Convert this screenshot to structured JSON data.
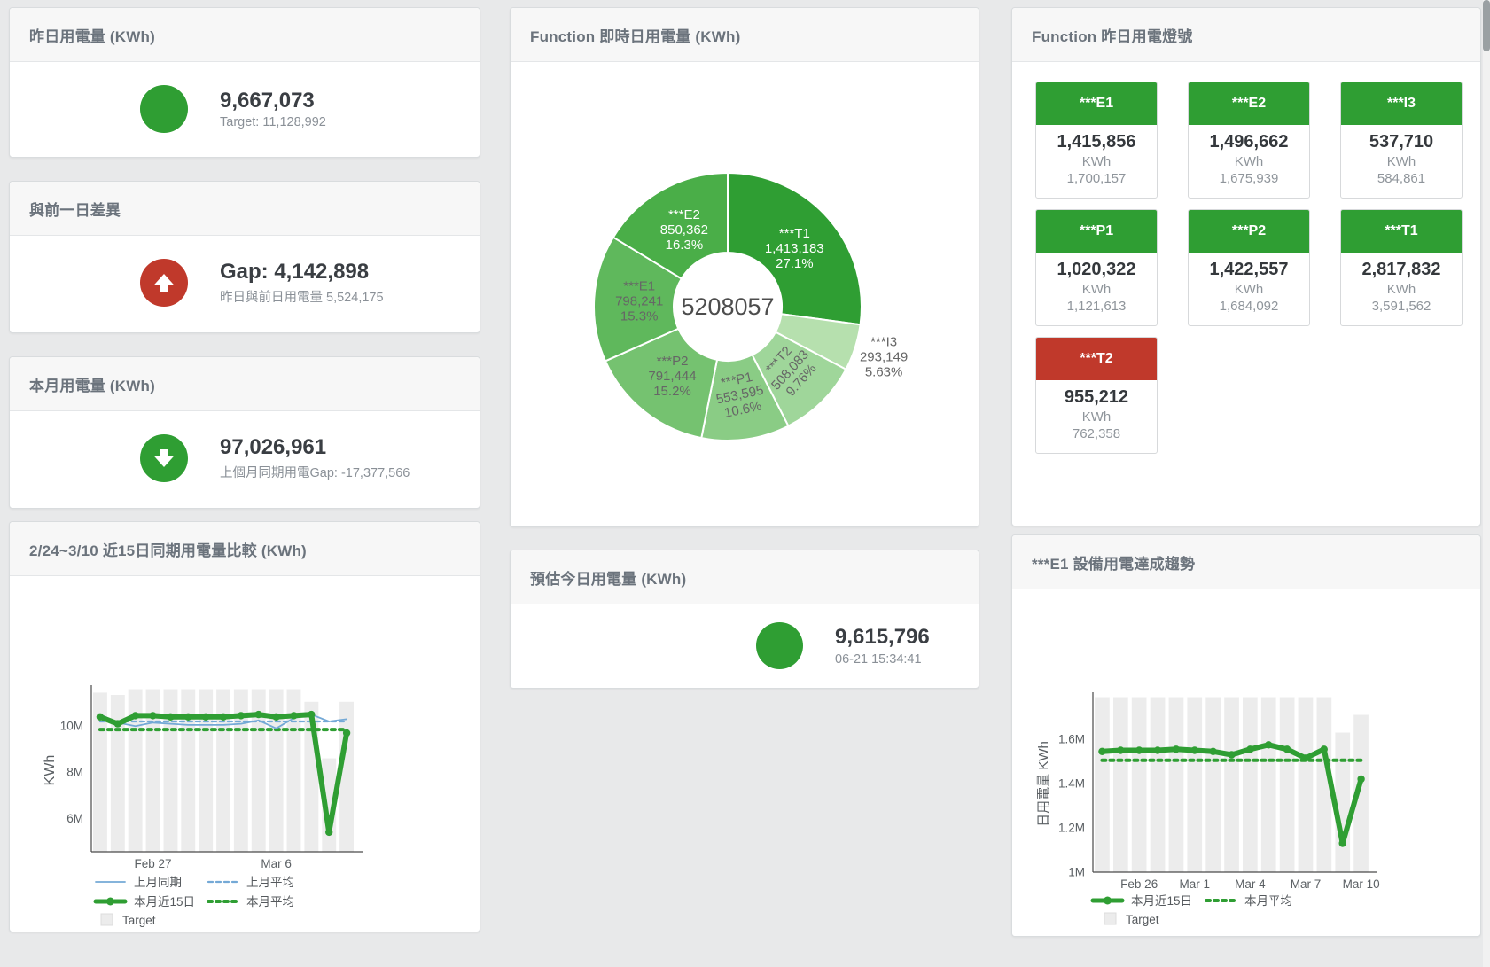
{
  "colors": {
    "green": "#2f9e33",
    "red": "#c0392b",
    "blue": "#74a9d6",
    "target_bar": "#ececec",
    "title_text": "#6b737c"
  },
  "stat_cards": {
    "yesterday": {
      "title": "昨日用電量 (KWh)",
      "value": "9,667,073",
      "subtext": "Target: 11,128,992",
      "status": "green"
    },
    "prev_day_gap": {
      "title": "與前一日差異",
      "value": "Gap: 4,142,898",
      "subtext": "昨日與前日用電量 5,524,175",
      "status": "red"
    },
    "month": {
      "title": "本月用電量 (KWh)",
      "value": "97,026,961",
      "subtext": "上個月同期用電Gap: -17,377,566",
      "status": "green"
    },
    "today_estimate": {
      "title": "預估今日用電量 (KWh)",
      "value": "9,615,796",
      "subtext": "06-21 15:34:41",
      "status": "green"
    }
  },
  "lamp_card": {
    "title": "Function 昨日用電燈號",
    "tiles": [
      {
        "label": "***E1",
        "value": "1,415,856",
        "unit": "KWh",
        "target": "1,700,157",
        "status": "green"
      },
      {
        "label": "***E2",
        "value": "1,496,662",
        "unit": "KWh",
        "target": "1,675,939",
        "status": "green"
      },
      {
        "label": "***I3",
        "value": "537,710",
        "unit": "KWh",
        "target": "584,861",
        "status": "green"
      },
      {
        "label": "***P1",
        "value": "1,020,322",
        "unit": "KWh",
        "target": "1,121,613",
        "status": "green"
      },
      {
        "label": "***P2",
        "value": "1,422,557",
        "unit": "KWh",
        "target": "1,684,092",
        "status": "green"
      },
      {
        "label": "***T1",
        "value": "2,817,832",
        "unit": "KWh",
        "target": "3,591,562",
        "status": "green"
      },
      {
        "label": "***T2",
        "value": "955,212",
        "unit": "KWh",
        "target": "762,358",
        "status": "red"
      }
    ]
  },
  "chart_data": [
    {
      "type": "pie",
      "title": "Function 即時日用電量 (KWh)",
      "center_label": "5208057",
      "legend_position": "none",
      "slices": [
        {
          "name": "***T1",
          "value": 1413183,
          "value_label": "1,413,183",
          "pct": "27.1%",
          "color": "#2f9e33",
          "label_color": "#ffffff"
        },
        {
          "name": "***I3",
          "value": 293149,
          "value_label": "293,149",
          "pct": "5.63%",
          "color": "#b6e0ae",
          "label_color": "#666666",
          "outside": true
        },
        {
          "name": "***T2",
          "value": 508083,
          "value_label": "508,083",
          "pct": "9.76%",
          "color": "#9fd69a",
          "label_color": "#666666",
          "label_rotate": -48
        },
        {
          "name": "***P1",
          "value": 553595,
          "value_label": "553,595",
          "pct": "10.6%",
          "color": "#8acc85",
          "label_color": "#666666",
          "label_rotate": -12
        },
        {
          "name": "***P2",
          "value": 791444,
          "value_label": "791,444",
          "pct": "15.2%",
          "color": "#75c270",
          "label_color": "#666666"
        },
        {
          "name": "***E1",
          "value": 798241,
          "value_label": "798,241",
          "pct": "15.3%",
          "color": "#5fb85c",
          "label_color": "#666666"
        },
        {
          "name": "***E2",
          "value": 850362,
          "value_label": "850,362",
          "pct": "16.3%",
          "color": "#4aae48",
          "label_color": "#ffffff"
        }
      ]
    },
    {
      "type": "line+bar",
      "title": "2/24~3/10 近15日同期用電量比較 (KWh)",
      "ylabel": "KWh",
      "ylim_m": [
        4.55,
        11.62
      ],
      "grid": false,
      "yticks": [
        {
          "v": 6,
          "label": "6M"
        },
        {
          "v": 8,
          "label": "8M"
        },
        {
          "v": 10,
          "label": "10M"
        }
      ],
      "xticks": [
        {
          "i": 3,
          "label": "Feb 27"
        },
        {
          "i": 10,
          "label": "Mar 6"
        }
      ],
      "target_bars_m": [
        11.45,
        11.35,
        11.6,
        11.6,
        11.6,
        11.6,
        11.6,
        11.6,
        11.6,
        11.6,
        11.6,
        11.6,
        11.05,
        8.6,
        11.05
      ],
      "series": [
        {
          "name": "上月平均",
          "style": "blue-dashed",
          "constant_m": 10.2
        },
        {
          "name": "本月平均",
          "style": "green-dotted",
          "constant_m": 9.85
        },
        {
          "name": "上月同期",
          "style": "blue-solid",
          "values_m": [
            10.5,
            10.15,
            10.0,
            10.15,
            10.1,
            10.05,
            10.05,
            10.05,
            10.1,
            10.25,
            9.9,
            10.35,
            10.5,
            10.2,
            10.3
          ]
        },
        {
          "name": "本月近15日",
          "style": "green-thick",
          "values_m": [
            10.4,
            10.1,
            10.45,
            10.45,
            10.4,
            10.4,
            10.4,
            10.4,
            10.45,
            10.5,
            10.4,
            10.45,
            10.5,
            5.4,
            9.7
          ]
        }
      ],
      "legend": [
        {
          "label": "上月同期",
          "swatch": "blue-solid"
        },
        {
          "label": "上月平均",
          "swatch": "blue-dashed"
        },
        {
          "label": "本月近15日",
          "swatch": "green-thick"
        },
        {
          "label": "本月平均",
          "swatch": "green-dotted"
        },
        {
          "label": "Target",
          "swatch": "gray-square"
        }
      ]
    },
    {
      "type": "line+bar",
      "title": "***E1 設備用電達成趨勢",
      "ylabel": "日用電量 KWh",
      "ylim_m": [
        1.0,
        1.796
      ],
      "grid": false,
      "yticks": [
        {
          "v": 1,
          "label": "1M"
        },
        {
          "v": 1.2,
          "label": "1.2M"
        },
        {
          "v": 1.4,
          "label": "1.4M"
        },
        {
          "v": 1.6,
          "label": "1.6M"
        }
      ],
      "xticks": [
        {
          "i": 2,
          "label": "Feb 26"
        },
        {
          "i": 5,
          "label": "Mar 1"
        },
        {
          "i": 8,
          "label": "Mar 4"
        },
        {
          "i": 11,
          "label": "Mar 7"
        },
        {
          "i": 14,
          "label": "Mar 10"
        }
      ],
      "target_bars_m": [
        1.79,
        1.79,
        1.79,
        1.79,
        1.79,
        1.79,
        1.79,
        1.79,
        1.79,
        1.79,
        1.79,
        1.79,
        1.79,
        1.63,
        1.71
      ],
      "series": [
        {
          "name": "本月平均",
          "style": "green-dotted",
          "constant_m": 1.505
        },
        {
          "name": "本月近15日",
          "style": "green-thick",
          "values_m": [
            1.545,
            1.55,
            1.55,
            1.55,
            1.555,
            1.55,
            1.545,
            1.53,
            1.555,
            1.575,
            1.555,
            1.515,
            1.555,
            1.13,
            1.42
          ]
        }
      ],
      "legend": [
        {
          "label": "本月近15日",
          "swatch": "green-thick"
        },
        {
          "label": "本月平均",
          "swatch": "green-dotted"
        },
        {
          "label": "Target",
          "swatch": "gray-square"
        }
      ]
    }
  ]
}
